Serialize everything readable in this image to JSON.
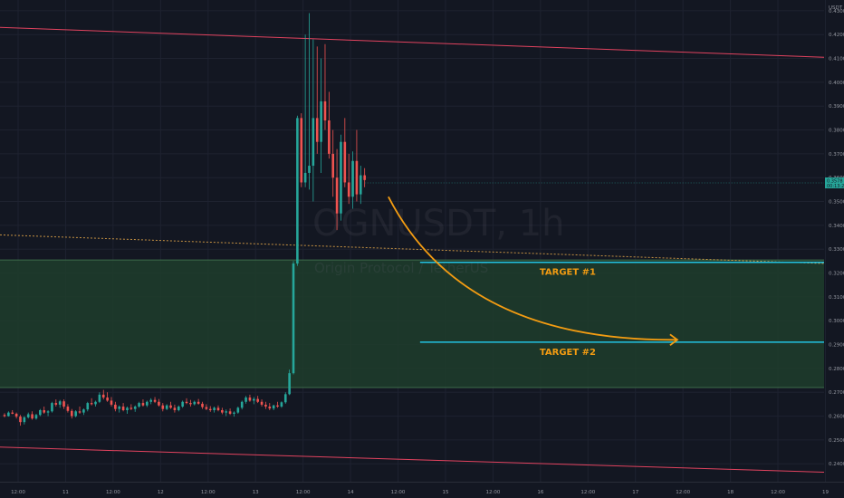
{
  "chart_data": {
    "type": "candlestick",
    "symbol_watermark": "OGNUSDT, 1h",
    "symbol_watermark_sub": "Origin Protocol / TetherUS",
    "currency": "USDT",
    "y_ticks": [
      "0.4300",
      "0.4200",
      "0.4100",
      "0.4000",
      "0.3900",
      "0.3800",
      "0.3700",
      "0.3600",
      "0.3500",
      "0.3400",
      "0.3300",
      "0.3200",
      "0.3100",
      "0.3000",
      "0.2900",
      "0.2800",
      "0.2700",
      "0.2600",
      "0.2500",
      "0.2400"
    ],
    "ylim": [
      0.2325,
      0.4345
    ],
    "x_ticks": [
      {
        "label": "12:00",
        "i": 0
      },
      {
        "label": "11",
        "i": 12
      },
      {
        "label": "12:00",
        "i": 24
      },
      {
        "label": "12",
        "i": 36
      },
      {
        "label": "12:00",
        "i": 48
      },
      {
        "label": "13",
        "i": 60
      },
      {
        "label": "12:00",
        "i": 72
      },
      {
        "label": "14",
        "i": 84
      },
      {
        "label": "12:00",
        "i": 96
      },
      {
        "label": "15",
        "i": 108
      },
      {
        "label": "12:00",
        "i": 120
      },
      {
        "label": "16",
        "i": 132
      },
      {
        "label": "12:00",
        "i": 144
      },
      {
        "label": "17",
        "i": 156
      },
      {
        "label": "12:00",
        "i": 168
      },
      {
        "label": "18",
        "i": 180
      },
      {
        "label": "12:00",
        "i": 192
      },
      {
        "label": "19",
        "i": 204
      }
    ],
    "bar_count": 206,
    "candles": [
      [
        0.2605,
        0.2612,
        0.2595,
        0.26
      ],
      [
        0.26,
        0.262,
        0.2598,
        0.2615
      ],
      [
        0.2615,
        0.2625,
        0.2608,
        0.261
      ],
      [
        0.261,
        0.2615,
        0.259,
        0.2598
      ],
      [
        0.2598,
        0.2605,
        0.256,
        0.2575
      ],
      [
        0.2575,
        0.26,
        0.2565,
        0.2595
      ],
      [
        0.2595,
        0.2615,
        0.259,
        0.2608
      ],
      [
        0.2608,
        0.262,
        0.2585,
        0.259
      ],
      [
        0.259,
        0.261,
        0.2585,
        0.2605
      ],
      [
        0.2605,
        0.263,
        0.26,
        0.2625
      ],
      [
        0.2625,
        0.264,
        0.261,
        0.2615
      ],
      [
        0.2615,
        0.2625,
        0.26,
        0.262
      ],
      [
        0.262,
        0.266,
        0.2615,
        0.2655
      ],
      [
        0.2655,
        0.267,
        0.264,
        0.2648
      ],
      [
        0.2648,
        0.2668,
        0.2635,
        0.2662
      ],
      [
        0.2662,
        0.267,
        0.263,
        0.264
      ],
      [
        0.264,
        0.265,
        0.2615,
        0.2622
      ],
      [
        0.2622,
        0.263,
        0.259,
        0.26
      ],
      [
        0.26,
        0.2625,
        0.2595,
        0.262
      ],
      [
        0.262,
        0.264,
        0.261,
        0.2615
      ],
      [
        0.2615,
        0.2632,
        0.2605,
        0.2628
      ],
      [
        0.2628,
        0.266,
        0.262,
        0.2655
      ],
      [
        0.2655,
        0.2675,
        0.2645,
        0.265
      ],
      [
        0.265,
        0.2665,
        0.264,
        0.266
      ],
      [
        0.266,
        0.27,
        0.2655,
        0.269
      ],
      [
        0.269,
        0.271,
        0.267,
        0.2678
      ],
      [
        0.2678,
        0.27,
        0.266,
        0.2665
      ],
      [
        0.2665,
        0.268,
        0.264,
        0.2648
      ],
      [
        0.2648,
        0.266,
        0.262,
        0.263
      ],
      [
        0.263,
        0.2645,
        0.2615,
        0.264
      ],
      [
        0.264,
        0.2655,
        0.262,
        0.2625
      ],
      [
        0.2625,
        0.264,
        0.261,
        0.2635
      ],
      [
        0.2635,
        0.265,
        0.2625,
        0.263
      ],
      [
        0.263,
        0.2645,
        0.2618,
        0.264
      ],
      [
        0.264,
        0.266,
        0.2635,
        0.2655
      ],
      [
        0.2655,
        0.267,
        0.264,
        0.2645
      ],
      [
        0.2645,
        0.2665,
        0.2638,
        0.266
      ],
      [
        0.266,
        0.2675,
        0.265,
        0.2668
      ],
      [
        0.2668,
        0.268,
        0.2655,
        0.266
      ],
      [
        0.266,
        0.2672,
        0.264,
        0.2645
      ],
      [
        0.2645,
        0.2655,
        0.262,
        0.263
      ],
      [
        0.263,
        0.265,
        0.2625,
        0.2645
      ],
      [
        0.2645,
        0.266,
        0.263,
        0.2635
      ],
      [
        0.2635,
        0.2648,
        0.2615,
        0.2625
      ],
      [
        0.2625,
        0.2645,
        0.262,
        0.264
      ],
      [
        0.264,
        0.2665,
        0.2635,
        0.266
      ],
      [
        0.266,
        0.2675,
        0.265,
        0.2655
      ],
      [
        0.2655,
        0.2668,
        0.264,
        0.265
      ],
      [
        0.265,
        0.2665,
        0.2645,
        0.266
      ],
      [
        0.266,
        0.2672,
        0.2648,
        0.2652
      ],
      [
        0.2652,
        0.266,
        0.263,
        0.2638
      ],
      [
        0.2638,
        0.265,
        0.2625,
        0.263
      ],
      [
        0.263,
        0.2642,
        0.2618,
        0.2625
      ],
      [
        0.2625,
        0.264,
        0.2615,
        0.2635
      ],
      [
        0.2635,
        0.2645,
        0.262,
        0.2625
      ],
      [
        0.2625,
        0.2635,
        0.2608,
        0.2615
      ],
      [
        0.2615,
        0.2628,
        0.26,
        0.262
      ],
      [
        0.262,
        0.2632,
        0.2605,
        0.261
      ],
      [
        0.261,
        0.262,
        0.2598,
        0.2615
      ],
      [
        0.2615,
        0.264,
        0.261,
        0.2635
      ],
      [
        0.2635,
        0.2665,
        0.2628,
        0.266
      ],
      [
        0.266,
        0.2685,
        0.2652,
        0.2678
      ],
      [
        0.2678,
        0.269,
        0.266,
        0.2665
      ],
      [
        0.2665,
        0.268,
        0.265,
        0.2672
      ],
      [
        0.2672,
        0.2685,
        0.2655,
        0.266
      ],
      [
        0.266,
        0.267,
        0.264,
        0.2648
      ],
      [
        0.2648,
        0.266,
        0.263,
        0.264
      ],
      [
        0.264,
        0.2655,
        0.2625,
        0.2632
      ],
      [
        0.2632,
        0.2648,
        0.2625,
        0.2645
      ],
      [
        0.2645,
        0.266,
        0.2635,
        0.264
      ],
      [
        0.264,
        0.2662,
        0.2635,
        0.2658
      ],
      [
        0.2658,
        0.27,
        0.2652,
        0.2692
      ],
      [
        0.2692,
        0.2795,
        0.2688,
        0.278
      ],
      [
        0.278,
        0.325,
        0.2775,
        0.324
      ],
      [
        0.324,
        0.386,
        0.323,
        0.385
      ],
      [
        0.385,
        0.387,
        0.356,
        0.358
      ],
      [
        0.358,
        0.42,
        0.356,
        0.362
      ],
      [
        0.362,
        0.429,
        0.355,
        0.365
      ],
      [
        0.365,
        0.418,
        0.35,
        0.385
      ],
      [
        0.385,
        0.415,
        0.37,
        0.375
      ],
      [
        0.375,
        0.41,
        0.362,
        0.392
      ],
      [
        0.392,
        0.416,
        0.38,
        0.384
      ],
      [
        0.384,
        0.396,
        0.368,
        0.37
      ],
      [
        0.37,
        0.38,
        0.352,
        0.36
      ],
      [
        0.36,
        0.372,
        0.338,
        0.345
      ],
      [
        0.345,
        0.378,
        0.342,
        0.375
      ],
      [
        0.375,
        0.385,
        0.356,
        0.358
      ],
      [
        0.358,
        0.37,
        0.349,
        0.352
      ],
      [
        0.352,
        0.371,
        0.347,
        0.367
      ],
      [
        0.367,
        0.38,
        0.35,
        0.353
      ],
      [
        0.353,
        0.365,
        0.349,
        0.361
      ],
      [
        0.361,
        0.364,
        0.356,
        0.359
      ]
    ],
    "colors": {
      "up": "#26a69a",
      "down": "#ef5350",
      "channel": "#e2435f",
      "zone": "#1f3d2c",
      "target": "#22c1e0",
      "arrow": "#f39c12",
      "last_price": "#26a69a",
      "dashed": "#f3b04b"
    },
    "channel_upper": [
      [
        0,
        0.423
      ],
      [
        205,
        0.4105
      ]
    ],
    "channel_lower": [
      [
        0,
        0.247
      ],
      [
        205,
        0.2365
      ]
    ],
    "dashed_line": [
      [
        0,
        0.336
      ],
      [
        205,
        0.324
      ]
    ],
    "zone": {
      "top": 0.3255,
      "bottom": 0.272
    },
    "targets": [
      {
        "label": "TARGET #1",
        "price": 0.3245,
        "from_i": 105,
        "to_i": 205
      },
      {
        "label": "TARGET #2",
        "price": 0.291,
        "from_i": 105,
        "to_i": 205
      }
    ],
    "arrow_path": [
      [
        97,
        0.352
      ],
      [
        125,
        0.314
      ],
      [
        170,
        0.292
      ]
    ],
    "last_price": {
      "value": "0.3578",
      "sub": "00:13:26"
    }
  }
}
